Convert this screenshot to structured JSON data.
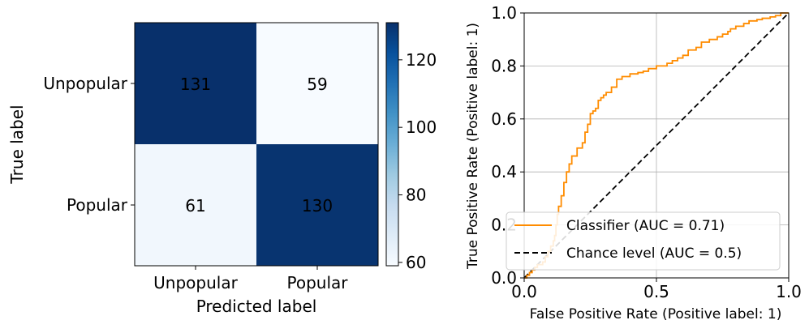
{
  "chart_data": [
    {
      "type": "heatmap",
      "title": "",
      "xlabel": "Predicted label",
      "ylabel": "True label",
      "x_categories": [
        "Unpopular",
        "Popular"
      ],
      "y_categories": [
        "Unpopular",
        "Popular"
      ],
      "matrix": [
        [
          131,
          59
        ],
        [
          61,
          130
        ]
      ],
      "colorbar": {
        "min": 59,
        "max": 131,
        "ticks": [
          "60",
          "80",
          "100",
          "120"
        ],
        "tick_values": [
          60,
          80,
          100,
          120
        ],
        "colormap": [
          "#f7fbff",
          "#deebf7",
          "#c6dbef",
          "#9ecae1",
          "#6baed6",
          "#4292c6",
          "#2171b5",
          "#08519c",
          "#08306b"
        ]
      }
    },
    {
      "type": "line",
      "title": "",
      "xlabel": "False Positive Rate (Positive label: 1)",
      "ylabel": "True Positive Rate (Positive label: 1)",
      "xlim": [
        0,
        1
      ],
      "ylim": [
        0,
        1
      ],
      "x_ticks": [
        "0.0",
        "0.5",
        "1.0"
      ],
      "x_tick_values": [
        0,
        0.5,
        1
      ],
      "y_ticks": [
        "0.0",
        "0.2",
        "0.4",
        "0.6",
        "0.8",
        "1.0"
      ],
      "y_tick_values": [
        0,
        0.2,
        0.4,
        0.6,
        0.8,
        1.0
      ],
      "grid": true,
      "legend_position": "lower-right",
      "series": [
        {
          "name": "Classifier (AUC = 0.71)",
          "color": "#ff8c00",
          "style": "solid",
          "x": [
            0,
            0.01,
            0.01,
            0.02,
            0.03,
            0.04,
            0.05,
            0.07,
            0.08,
            0.09,
            0.1,
            0.11,
            0.115,
            0.12,
            0.125,
            0.13,
            0.14,
            0.15,
            0.16,
            0.17,
            0.18,
            0.2,
            0.22,
            0.23,
            0.24,
            0.25,
            0.26,
            0.27,
            0.28,
            0.29,
            0.3,
            0.31,
            0.33,
            0.35,
            0.37,
            0.4,
            0.43,
            0.45,
            0.47,
            0.5,
            0.52,
            0.54,
            0.56,
            0.58,
            0.6,
            0.62,
            0.65,
            0.67,
            0.7,
            0.73,
            0.75,
            0.77,
            0.78,
            0.8,
            0.83,
            0.85,
            0.88,
            0.9,
            0.93,
            0.95,
            0.97,
            1.0
          ],
          "y": [
            0,
            0,
            0.01,
            0.02,
            0.03,
            0.04,
            0.05,
            0.06,
            0.08,
            0.1,
            0.12,
            0.14,
            0.16,
            0.2,
            0.24,
            0.27,
            0.31,
            0.36,
            0.4,
            0.43,
            0.46,
            0.49,
            0.51,
            0.55,
            0.58,
            0.62,
            0.63,
            0.64,
            0.67,
            0.68,
            0.69,
            0.7,
            0.72,
            0.75,
            0.76,
            0.77,
            0.775,
            0.78,
            0.79,
            0.8,
            0.8,
            0.81,
            0.82,
            0.83,
            0.84,
            0.86,
            0.87,
            0.89,
            0.9,
            0.91,
            0.92,
            0.93,
            0.94,
            0.95,
            0.96,
            0.97,
            0.975,
            0.98,
            0.985,
            0.99,
            1.0,
            1.0
          ]
        },
        {
          "name": "Chance level (AUC = 0.5)",
          "color": "#000000",
          "style": "dashed",
          "x": [
            0,
            1
          ],
          "y": [
            0,
            1
          ]
        }
      ]
    }
  ]
}
